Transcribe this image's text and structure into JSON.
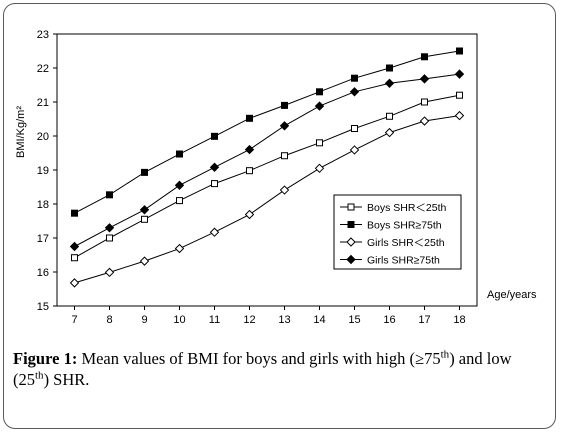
{
  "chart_data": {
    "type": "line",
    "ylabel": "BMI/Kg/m²",
    "xlabel": "Age/years",
    "x": [
      7,
      8,
      9,
      10,
      11,
      12,
      13,
      14,
      15,
      16,
      17,
      18
    ],
    "xlim": [
      6.5,
      18.5
    ],
    "ylim": [
      15,
      23
    ],
    "yticks": [
      15,
      16,
      17,
      18,
      19,
      20,
      21,
      22,
      23
    ],
    "grid": false,
    "legend_position": "lower-right",
    "series": [
      {
        "name": "Boys SHR＜25th",
        "marker": "open-square",
        "values": [
          16.42,
          17.0,
          17.55,
          18.1,
          18.6,
          18.98,
          19.42,
          19.8,
          20.22,
          20.58,
          21.0,
          21.2
        ]
      },
      {
        "name": "Boys SHR≥75th",
        "marker": "filled-square",
        "values": [
          17.73,
          18.27,
          18.93,
          19.47,
          19.99,
          20.52,
          20.9,
          21.3,
          21.7,
          22.0,
          22.33,
          22.5
        ]
      },
      {
        "name": "Girls SHR＜25th",
        "marker": "open-diamond",
        "values": [
          15.68,
          15.99,
          16.32,
          16.69,
          17.17,
          17.69,
          18.41,
          19.05,
          19.59,
          20.1,
          20.44,
          20.6
        ]
      },
      {
        "name": "Girls SHR≥75th",
        "marker": "filled-diamond",
        "values": [
          16.75,
          17.3,
          17.83,
          18.55,
          19.08,
          19.6,
          20.3,
          20.88,
          21.3,
          21.55,
          21.68,
          21.82
        ]
      }
    ]
  },
  "caption": {
    "label": "Figure 1:",
    "text_a": " Mean values of BMI for boys and girls with high (≥75",
    "sup_a": "th",
    "text_b": ") and low (25",
    "sup_b": "th",
    "text_c": ") SHR."
  }
}
